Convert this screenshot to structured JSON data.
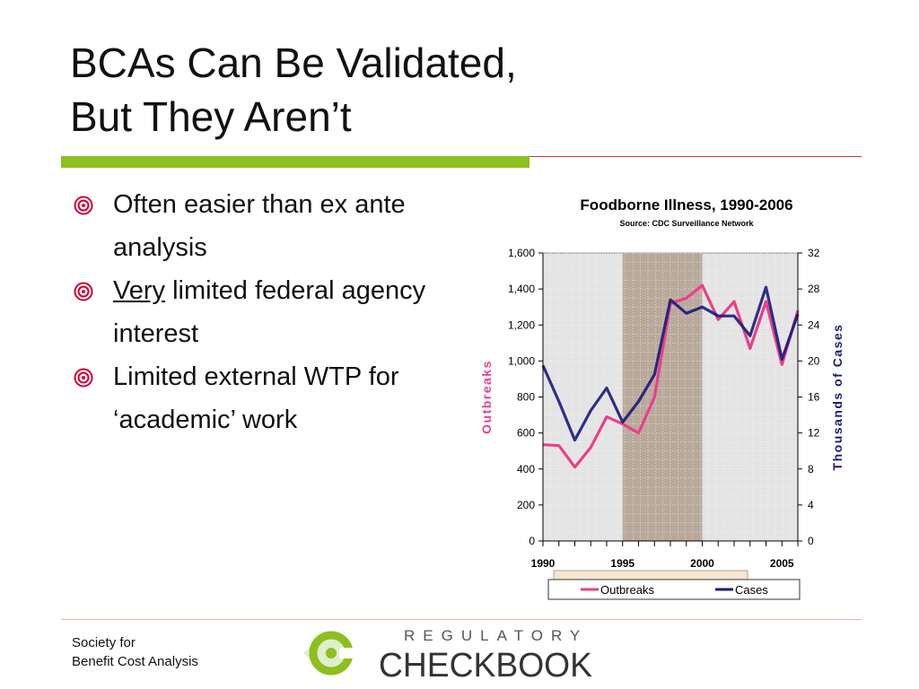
{
  "slide": {
    "title_line1": "BCAs Can Be Validated,",
    "title_line2": "But They Aren’t",
    "bullets": [
      {
        "pre": "",
        "underlined": "",
        "text": "Often easier than ex ante analysis"
      },
      {
        "pre": "",
        "underlined": "Very",
        "text": " limited federal agency interest"
      },
      {
        "pre": "",
        "underlined": "",
        "text": "Limited external WTP for ‘academic’ work"
      }
    ],
    "bullet_icon": "target-bullet-icon",
    "accent_color": "#cc0033",
    "green_bar_color": "#8dbf1e"
  },
  "footer": {
    "org_line1": "Society for",
    "org_line2": "Benefit Cost Analysis",
    "logo_top": "REGULATORY",
    "logo_bottom": "CHECKBOOK"
  },
  "chart_data": {
    "type": "line",
    "title": "Foodborne Illness, 1990-2006",
    "subtitle": "Source: CDC Surveillance Network",
    "ylabel_left": "Outbreaks",
    "ylabel_right": "Thousands of Cases",
    "x": [
      1990,
      1991,
      1992,
      1993,
      1994,
      1995,
      1996,
      1997,
      1998,
      1999,
      2000,
      2001,
      2002,
      2003,
      2004,
      2005,
      2006
    ],
    "x_ticks": [
      "1990",
      "1995",
      "2000",
      "2005"
    ],
    "ylim_left": [
      0,
      1600
    ],
    "yticks_left": [
      "0",
      "200",
      "400",
      "600",
      "800",
      "1,000",
      "1,200",
      "1,400",
      "1,600"
    ],
    "ylim_right": [
      0,
      32
    ],
    "yticks_right": [
      "0",
      "4",
      "8",
      "12",
      "16",
      "20",
      "24",
      "28",
      "32"
    ],
    "highlight_range": [
      1995,
      2000
    ],
    "series": [
      {
        "name": "Outbreaks",
        "axis": "left",
        "color": "#e8408a",
        "values": [
          535,
          530,
          410,
          520,
          690,
          650,
          600,
          800,
          1320,
          1350,
          1420,
          1230,
          1330,
          1070,
          1330,
          980,
          1280
        ]
      },
      {
        "name": "Cases",
        "axis": "right",
        "color": "#1a1a7a",
        "values": [
          19.5,
          15.5,
          11.2,
          14.5,
          17.0,
          13.2,
          15.5,
          18.5,
          26.8,
          25.3,
          26.0,
          25.0,
          25.0,
          22.8,
          28.2,
          20.2,
          25.2
        ]
      }
    ],
    "grid": true,
    "legend": "bottom"
  }
}
